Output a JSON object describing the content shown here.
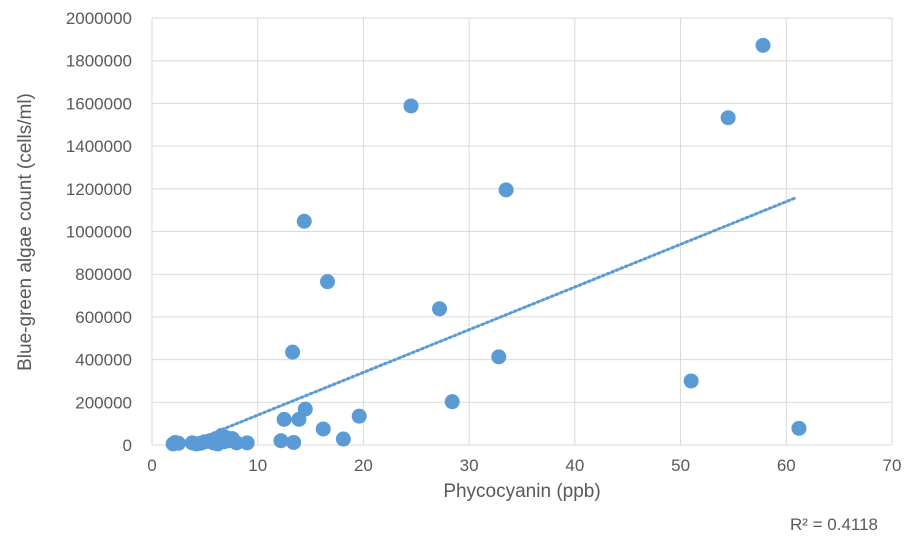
{
  "chart_data": {
    "type": "scatter",
    "xlabel": "Phycocyanin (ppb)",
    "ylabel": "Blue-green algae count (cells/ml)",
    "xlim": [
      0,
      70
    ],
    "ylim": [
      0,
      2000000
    ],
    "x_ticks": [
      "0",
      "10",
      "20",
      "30",
      "40",
      "50",
      "60",
      "70"
    ],
    "y_ticks": [
      "0",
      "200000",
      "400000",
      "600000",
      "800000",
      "1000000",
      "1200000",
      "1400000",
      "1600000",
      "1800000",
      "2000000"
    ],
    "grid": true,
    "marker_color": "#5b9bd5",
    "trendline": {
      "type": "linear",
      "x_start": 4,
      "x_end": 61,
      "y_start": 20000,
      "y_end": 1160000,
      "r_squared_label": "R² = 0.4118",
      "color": "#5b9bd5",
      "style": "dotted"
    },
    "points": [
      {
        "x": 2.0,
        "y": 5000
      },
      {
        "x": 2.2,
        "y": 12000
      },
      {
        "x": 2.5,
        "y": 8000
      },
      {
        "x": 3.8,
        "y": 10000
      },
      {
        "x": 4.2,
        "y": 5000
      },
      {
        "x": 4.6,
        "y": 8000
      },
      {
        "x": 5.0,
        "y": 15000
      },
      {
        "x": 5.5,
        "y": 20000
      },
      {
        "x": 5.8,
        "y": 10000
      },
      {
        "x": 6.2,
        "y": 5000
      },
      {
        "x": 6.4,
        "y": 25000
      },
      {
        "x": 6.6,
        "y": 45000
      },
      {
        "x": 6.8,
        "y": 15000
      },
      {
        "x": 7.0,
        "y": 35000
      },
      {
        "x": 7.3,
        "y": 20000
      },
      {
        "x": 7.6,
        "y": 30000
      },
      {
        "x": 8.0,
        "y": 10000
      },
      {
        "x": 9.0,
        "y": 10000
      },
      {
        "x": 12.2,
        "y": 20000
      },
      {
        "x": 12.5,
        "y": 120000
      },
      {
        "x": 13.3,
        "y": 435000
      },
      {
        "x": 13.4,
        "y": 12000
      },
      {
        "x": 13.9,
        "y": 120000
      },
      {
        "x": 14.4,
        "y": 1048000
      },
      {
        "x": 14.5,
        "y": 168000
      },
      {
        "x": 16.2,
        "y": 75000
      },
      {
        "x": 16.6,
        "y": 765000
      },
      {
        "x": 18.1,
        "y": 28000
      },
      {
        "x": 19.6,
        "y": 135000
      },
      {
        "x": 24.5,
        "y": 1588000
      },
      {
        "x": 27.2,
        "y": 638000
      },
      {
        "x": 28.4,
        "y": 203000
      },
      {
        "x": 32.8,
        "y": 413000
      },
      {
        "x": 33.5,
        "y": 1195000
      },
      {
        "x": 51.0,
        "y": 300000
      },
      {
        "x": 54.5,
        "y": 1533000
      },
      {
        "x": 57.8,
        "y": 1872000
      },
      {
        "x": 61.2,
        "y": 78000
      }
    ]
  }
}
